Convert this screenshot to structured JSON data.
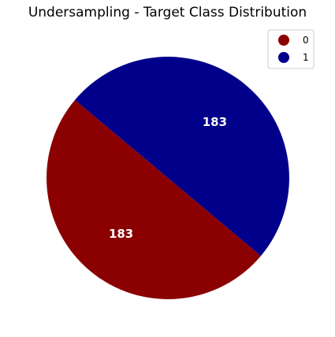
{
  "chart_data": {
    "type": "pie",
    "title": "Undersampling - Target Class Distribution",
    "slices": [
      {
        "label": "0",
        "value": 183,
        "color": "#8b0000"
      },
      {
        "label": "1",
        "value": 183,
        "color": "#00008b"
      }
    ],
    "start_angle_deg": 140,
    "direction": "counterclockwise",
    "data_labels": "white-bold-counts",
    "legend": {
      "placement": "top-right",
      "entries": [
        "0",
        "1"
      ]
    }
  }
}
